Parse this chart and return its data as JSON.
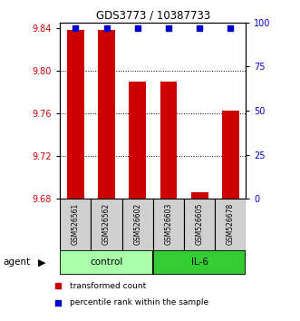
{
  "title": "GDS3773 / 10387733",
  "samples": [
    "GSM526561",
    "GSM526562",
    "GSM526602",
    "GSM526603",
    "GSM526605",
    "GSM526678"
  ],
  "groups": [
    "control",
    "control",
    "control",
    "IL-6",
    "IL-6",
    "IL-6"
  ],
  "bar_values": [
    9.838,
    9.838,
    9.79,
    9.79,
    9.686,
    9.763
  ],
  "bar_bottom": 9.68,
  "ylim_left": [
    9.68,
    9.845
  ],
  "ylim_right": [
    0,
    100
  ],
  "yticks_left": [
    9.68,
    9.72,
    9.76,
    9.8,
    9.84
  ],
  "yticks_right": [
    0,
    25,
    50,
    75,
    100
  ],
  "bar_color": "#cc0000",
  "percentile_color": "#0000cc",
  "control_color": "#aaffaa",
  "il6_color": "#33cc33",
  "legend_bar_label": "transformed count",
  "legend_pct_label": "percentile rank within the sample",
  "ylabel_left_color": "#cc0000",
  "ylabel_right_color": "#0000cc",
  "bar_width": 0.55,
  "percentile_marker_size": 5
}
